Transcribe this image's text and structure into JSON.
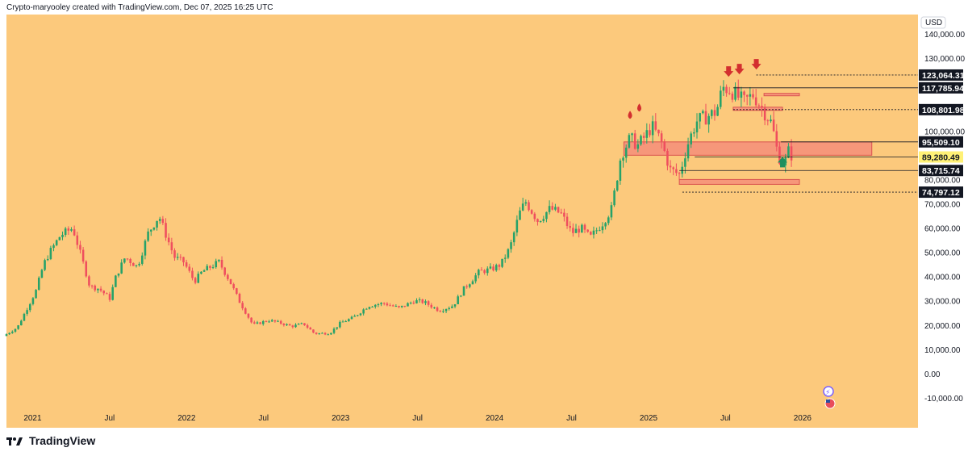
{
  "header": {
    "attribution": "Crypto-maryooley created with TradingView.com, Dec 07, 2025 16:25 UTC"
  },
  "footer": {
    "brand": "TradingView"
  },
  "colors": {
    "background": "#fcc97c",
    "up": "#26a269",
    "down": "#ef4f5e",
    "zone": "#f4857a"
  },
  "chart_data": {
    "type": "candlestick",
    "title": "",
    "currency": "USD",
    "ylim": [
      -15000,
      148000
    ],
    "y_ticks": [
      -10000,
      0,
      10000,
      20000,
      30000,
      40000,
      50000,
      60000,
      70000,
      80000,
      90000,
      100000,
      110000,
      120000,
      130000,
      140000
    ],
    "y_tick_labels": [
      "-10,000.00",
      "0.00",
      "10,000.00",
      "20,000.00",
      "30,000.00",
      "40,000.00",
      "50,000.00",
      "60,000.00",
      "70,000.00",
      "80,000.00",
      "90,000.00",
      "100,000.00",
      "110,000.00",
      "120,000.00",
      "130,000.00",
      "140,000.00"
    ],
    "x_range": [
      2020.83,
      2026.75
    ],
    "x_ticks": [
      {
        "t": 2021.0,
        "label": "2021"
      },
      {
        "t": 2021.5,
        "label": "Jul"
      },
      {
        "t": 2022.0,
        "label": "2022"
      },
      {
        "t": 2022.5,
        "label": "Jul"
      },
      {
        "t": 2023.0,
        "label": "2023"
      },
      {
        "t": 2023.5,
        "label": "Jul"
      },
      {
        "t": 2024.0,
        "label": "2024"
      },
      {
        "t": 2024.5,
        "label": "Jul"
      },
      {
        "t": 2025.0,
        "label": "2025"
      },
      {
        "t": 2025.5,
        "label": "Jul"
      },
      {
        "t": 2026.0,
        "label": "2026"
      }
    ],
    "price_path": [
      [
        2020.83,
        15500
      ],
      [
        2020.92,
        19000
      ],
      [
        2021.0,
        29000
      ],
      [
        2021.04,
        34000
      ],
      [
        2021.09,
        45000
      ],
      [
        2021.13,
        50000
      ],
      [
        2021.2,
        57000
      ],
      [
        2021.28,
        60000
      ],
      [
        2021.35,
        45000
      ],
      [
        2021.39,
        36000
      ],
      [
        2021.45,
        35000
      ],
      [
        2021.52,
        31000
      ],
      [
        2021.56,
        40000
      ],
      [
        2021.62,
        48000
      ],
      [
        2021.7,
        44000
      ],
      [
        2021.77,
        58000
      ],
      [
        2021.84,
        65000
      ],
      [
        2021.88,
        58000
      ],
      [
        2021.94,
        48000
      ],
      [
        2022.0,
        46000
      ],
      [
        2022.07,
        38000
      ],
      [
        2022.12,
        42000
      ],
      [
        2022.23,
        46000
      ],
      [
        2022.3,
        38000
      ],
      [
        2022.36,
        30000
      ],
      [
        2022.45,
        20000
      ],
      [
        2022.55,
        22000
      ],
      [
        2022.62,
        21000
      ],
      [
        2022.7,
        19500
      ],
      [
        2022.78,
        20500
      ],
      [
        2022.85,
        16500
      ],
      [
        2022.95,
        16700
      ],
      [
        2023.02,
        21000
      ],
      [
        2023.1,
        23000
      ],
      [
        2023.2,
        28000
      ],
      [
        2023.3,
        29000
      ],
      [
        2023.4,
        27000
      ],
      [
        2023.5,
        30000
      ],
      [
        2023.56,
        29500
      ],
      [
        2023.66,
        26000
      ],
      [
        2023.75,
        28000
      ],
      [
        2023.82,
        35000
      ],
      [
        2023.92,
        42000
      ],
      [
        2024.0,
        43000
      ],
      [
        2024.06,
        45000
      ],
      [
        2024.12,
        52000
      ],
      [
        2024.18,
        66000
      ],
      [
        2024.22,
        71000
      ],
      [
        2024.3,
        63000
      ],
      [
        2024.38,
        68000
      ],
      [
        2024.45,
        66000
      ],
      [
        2024.52,
        58000
      ],
      [
        2024.58,
        60000
      ],
      [
        2024.64,
        56000
      ],
      [
        2024.72,
        62000
      ],
      [
        2024.78,
        68000
      ],
      [
        2024.84,
        90000
      ],
      [
        2024.9,
        97000
      ],
      [
        2024.95,
        94000
      ],
      [
        2025.0,
        98000
      ],
      [
        2025.04,
        102000
      ],
      [
        2025.1,
        96000
      ],
      [
        2025.16,
        84000
      ],
      [
        2025.22,
        82000
      ],
      [
        2025.27,
        94000
      ],
      [
        2025.33,
        104000
      ],
      [
        2025.4,
        106000
      ],
      [
        2025.46,
        108000
      ],
      [
        2025.5,
        118000
      ],
      [
        2025.55,
        117000
      ],
      [
        2025.6,
        114000
      ],
      [
        2025.64,
        112000
      ],
      [
        2025.7,
        115000
      ],
      [
        2025.75,
        110000
      ],
      [
        2025.82,
        103000
      ],
      [
        2025.86,
        90000
      ],
      [
        2025.9,
        86000
      ],
      [
        2025.93,
        92000
      ],
      [
        2025.94,
        90000
      ]
    ],
    "price_levels": [
      {
        "value": 123064.31,
        "label": "123,064.31",
        "style": "black"
      },
      {
        "value": 117785.94,
        "label": "117,785.94",
        "style": "black"
      },
      {
        "value": 108801.98,
        "label": "108,801.98",
        "style": "black"
      },
      {
        "value": 95509.1,
        "label": "95,509.10",
        "style": "black"
      },
      {
        "value": 89280.49,
        "label": "89,280.49",
        "style": "yellow"
      },
      {
        "value": 83715.74,
        "label": "83,715.74",
        "style": "black"
      },
      {
        "value": 74797.12,
        "label": "74,797.12",
        "style": "black"
      }
    ],
    "zones": [
      {
        "t0": 2024.84,
        "t1": 2026.45,
        "y0": 90000,
        "y1": 95500
      },
      {
        "t0": 2025.2,
        "t1": 2025.98,
        "y0": 78000,
        "y1": 80000
      },
      {
        "t0": 2025.55,
        "t1": 2025.87,
        "y0": 108500,
        "y1": 109800
      },
      {
        "t0": 2025.75,
        "t1": 2025.98,
        "y0": 114500,
        "y1": 115500
      }
    ],
    "markers": [
      {
        "t": 2024.88,
        "v": 106000,
        "kind": "drop"
      },
      {
        "t": 2024.94,
        "v": 109000,
        "kind": "drop"
      },
      {
        "t": 2025.52,
        "v": 124000,
        "kind": "arrow-down"
      },
      {
        "t": 2025.59,
        "v": 125000,
        "kind": "arrow-down"
      },
      {
        "t": 2025.7,
        "v": 127000,
        "kind": "arrow-down"
      },
      {
        "t": 2025.87,
        "v": 87000,
        "kind": "arrow-up"
      }
    ]
  }
}
